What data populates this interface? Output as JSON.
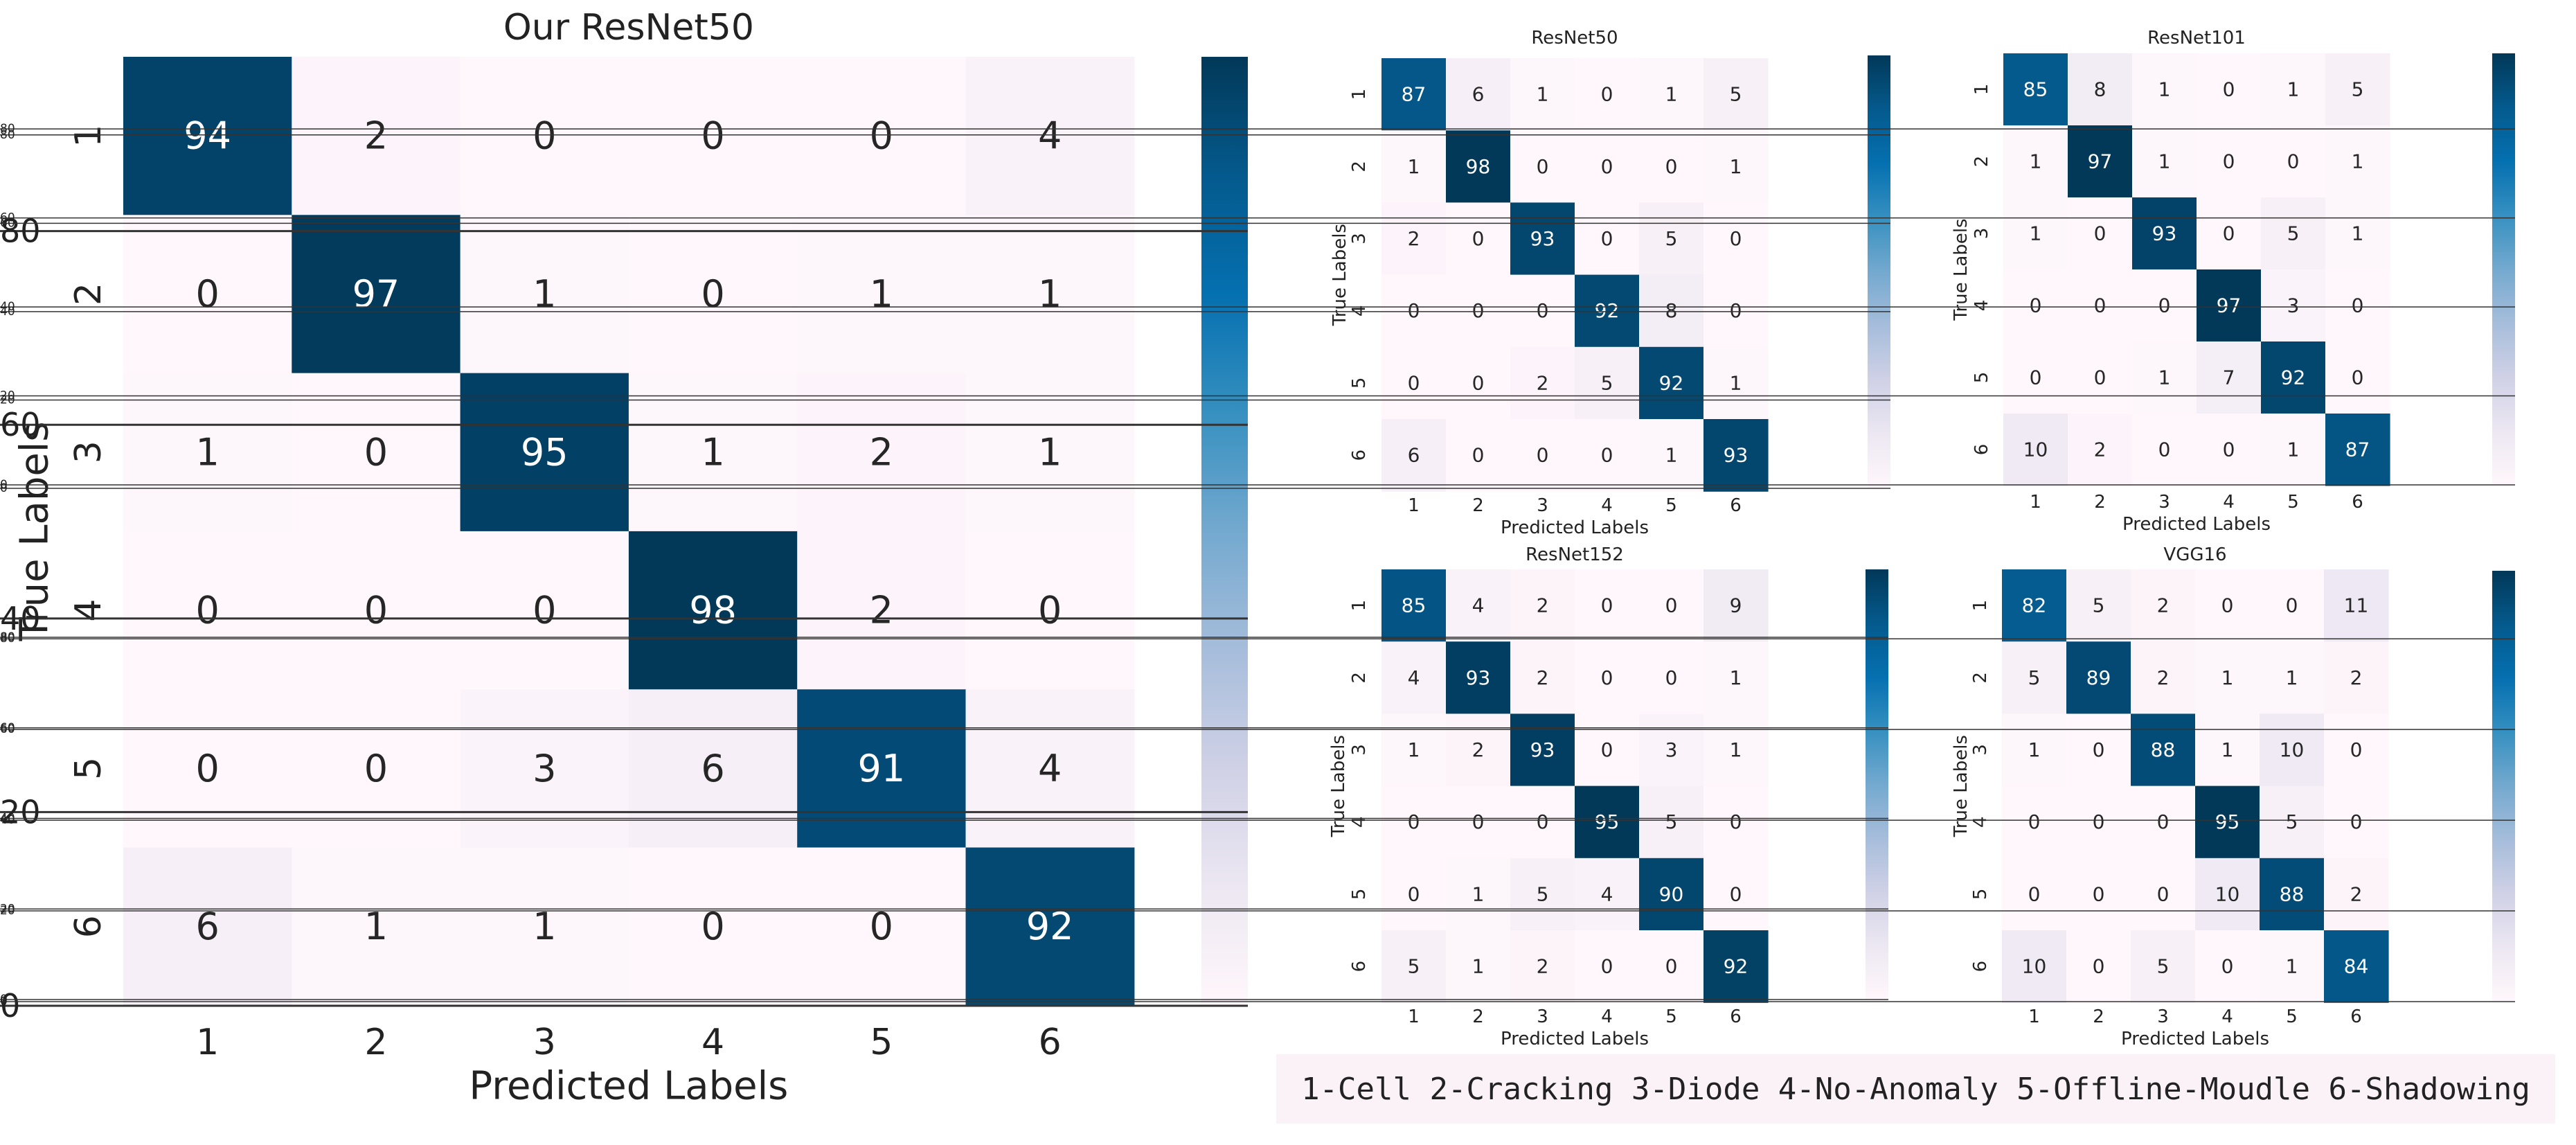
{
  "colors": {
    "low": "#fff7fb",
    "scale": [
      "#fff7fb",
      "#ece7f2",
      "#d0d1e6",
      "#a6bddb",
      "#74a9cf",
      "#3690c0",
      "#0570b0",
      "#045a8d",
      "#023858"
    ]
  },
  "legend_text": "1-Cell 2-Cracking 3-Diode 4-No-Anomaly 5-Offline-Moudle 6-Shadowing",
  "chart_data": [
    {
      "type": "heatmap",
      "title": "Our ResNet50",
      "xlabel": "Predicted Labels",
      "ylabel": "True Labels",
      "x_ticks": [
        "1",
        "2",
        "3",
        "4",
        "5",
        "6"
      ],
      "y_ticks": [
        "1",
        "2",
        "3",
        "4",
        "5",
        "6"
      ],
      "matrix": [
        [
          94,
          2,
          0,
          0,
          0,
          4
        ],
        [
          0,
          97,
          1,
          0,
          1,
          1
        ],
        [
          1,
          0,
          95,
          1,
          2,
          1
        ],
        [
          0,
          0,
          0,
          98,
          2,
          0
        ],
        [
          0,
          0,
          3,
          6,
          91,
          4
        ],
        [
          6,
          1,
          1,
          0,
          0,
          92
        ]
      ],
      "colorbar": {
        "vmin": 0,
        "vmax": 98,
        "ticks": [
          "0",
          "20",
          "40",
          "60",
          "80"
        ]
      }
    },
    {
      "type": "heatmap",
      "title": "ResNet50",
      "xlabel": "Predicted Labels",
      "ylabel": "True Labels",
      "x_ticks": [
        "1",
        "2",
        "3",
        "4",
        "5",
        "6"
      ],
      "y_ticks": [
        "1",
        "2",
        "3",
        "4",
        "5",
        "6"
      ],
      "matrix": [
        [
          87,
          6,
          1,
          0,
          1,
          5
        ],
        [
          1,
          98,
          0,
          0,
          0,
          1
        ],
        [
          2,
          0,
          93,
          0,
          5,
          0
        ],
        [
          0,
          0,
          0,
          92,
          8,
          0
        ],
        [
          0,
          0,
          2,
          5,
          92,
          1
        ],
        [
          6,
          0,
          0,
          0,
          1,
          93
        ]
      ],
      "colorbar": {
        "vmin": 0,
        "vmax": 98,
        "ticks": [
          "0",
          "20",
          "40",
          "60",
          "80"
        ]
      }
    },
    {
      "type": "heatmap",
      "title": "ResNet101",
      "xlabel": "Predicted Labels",
      "ylabel": "True Labels",
      "x_ticks": [
        "1",
        "2",
        "3",
        "4",
        "5",
        "6"
      ],
      "y_ticks": [
        "1",
        "2",
        "3",
        "4",
        "5",
        "6"
      ],
      "matrix": [
        [
          85,
          8,
          1,
          0,
          1,
          5
        ],
        [
          1,
          97,
          1,
          0,
          0,
          1
        ],
        [
          1,
          0,
          93,
          0,
          5,
          1
        ],
        [
          0,
          0,
          0,
          97,
          3,
          0
        ],
        [
          0,
          0,
          1,
          7,
          92,
          0
        ],
        [
          10,
          2,
          0,
          0,
          1,
          87
        ]
      ],
      "colorbar": {
        "vmin": 0,
        "vmax": 97,
        "ticks": [
          "0",
          "20",
          "40",
          "60",
          "80"
        ]
      }
    },
    {
      "type": "heatmap",
      "title": "ResNet152",
      "xlabel": "Predicted Labels",
      "ylabel": "True Labels",
      "x_ticks": [
        "1",
        "2",
        "3",
        "4",
        "5",
        "6"
      ],
      "y_ticks": [
        "1",
        "2",
        "3",
        "4",
        "5",
        "6"
      ],
      "matrix": [
        [
          85,
          4,
          2,
          0,
          0,
          9
        ],
        [
          4,
          93,
          2,
          0,
          0,
          1
        ],
        [
          1,
          2,
          93,
          0,
          3,
          1
        ],
        [
          0,
          0,
          0,
          95,
          5,
          0
        ],
        [
          0,
          1,
          5,
          4,
          90,
          0
        ],
        [
          5,
          1,
          2,
          0,
          0,
          92
        ]
      ],
      "colorbar": {
        "vmin": 0,
        "vmax": 95,
        "ticks": [
          "0",
          "20",
          "40",
          "60",
          "80"
        ]
      }
    },
    {
      "type": "heatmap",
      "title": "VGG16",
      "xlabel": "Predicted Labels",
      "ylabel": "True Labels",
      "x_ticks": [
        "1",
        "2",
        "3",
        "4",
        "5",
        "6"
      ],
      "y_ticks": [
        "1",
        "2",
        "3",
        "4",
        "5",
        "6"
      ],
      "matrix": [
        [
          82,
          5,
          2,
          0,
          0,
          11
        ],
        [
          5,
          89,
          2,
          1,
          1,
          2
        ],
        [
          1,
          0,
          88,
          1,
          10,
          0
        ],
        [
          0,
          0,
          0,
          95,
          5,
          0
        ],
        [
          0,
          0,
          0,
          10,
          88,
          2
        ],
        [
          10,
          0,
          5,
          0,
          1,
          84
        ]
      ],
      "colorbar": {
        "vmin": 0,
        "vmax": 95,
        "ticks": [
          "0",
          "20",
          "40",
          "60",
          "80"
        ]
      }
    }
  ]
}
